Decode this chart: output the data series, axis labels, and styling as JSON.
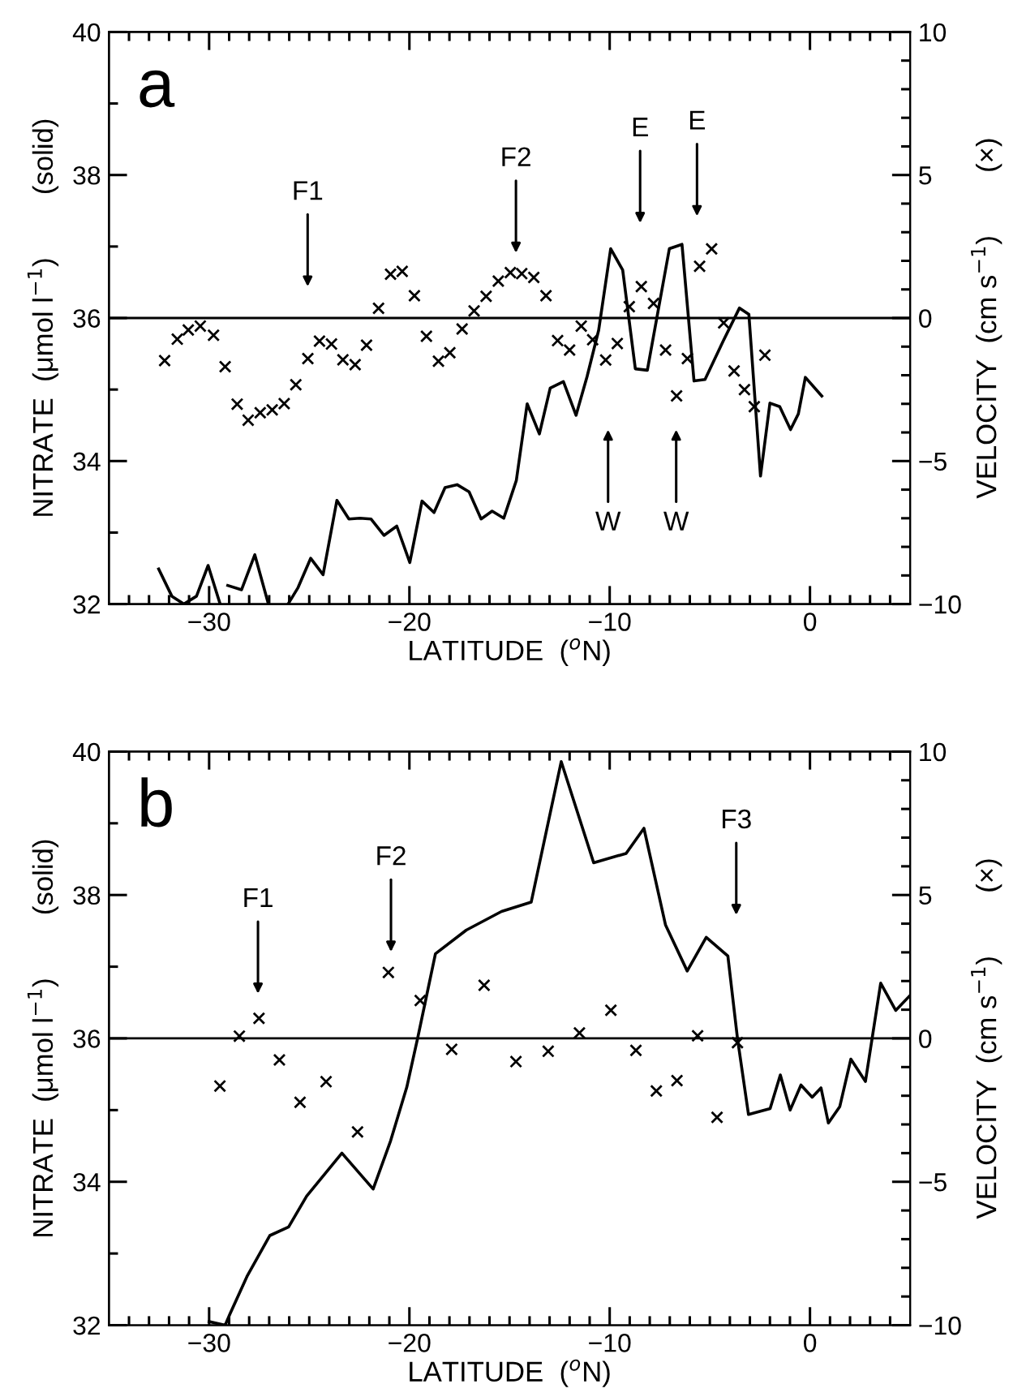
{
  "chart_data": [
    {
      "type": "line",
      "xlabel": "LATITUDE  ($^{o}$N)",
      "ylabel": "NITRATE  (μmol l$^{−1}$)        (solid)",
      "y2label": "VELOCITY  (cm s$^{−1}$)        (×)",
      "xlim": [
        -35,
        5
      ],
      "ylim": [
        32,
        40
      ],
      "y2lim": [
        -10,
        10
      ],
      "xticks": [
        {
          "value": -34,
          "label": null
        },
        {
          "value": -33,
          "label": null
        },
        {
          "value": -32,
          "label": null
        },
        {
          "value": -31,
          "label": null
        },
        {
          "value": -30,
          "label": "−30"
        },
        {
          "value": -29,
          "label": null
        },
        {
          "value": -28,
          "label": null
        },
        {
          "value": -27,
          "label": null
        },
        {
          "value": -26,
          "label": null
        },
        {
          "value": -25,
          "label": null
        },
        {
          "value": -24,
          "label": null
        },
        {
          "value": -23,
          "label": null
        },
        {
          "value": -22,
          "label": null
        },
        {
          "value": -21,
          "label": null
        },
        {
          "value": -20,
          "label": "−20"
        },
        {
          "value": -19,
          "label": null
        },
        {
          "value": -18,
          "label": null
        },
        {
          "value": -17,
          "label": null
        },
        {
          "value": -16,
          "label": null
        },
        {
          "value": -15,
          "label": null
        },
        {
          "value": -14,
          "label": null
        },
        {
          "value": -13,
          "label": null
        },
        {
          "value": -12,
          "label": null
        },
        {
          "value": -11,
          "label": null
        },
        {
          "value": -10,
          "label": "−10"
        },
        {
          "value": -9,
          "label": null
        },
        {
          "value": -8,
          "label": null
        },
        {
          "value": -7,
          "label": null
        },
        {
          "value": -6,
          "label": null
        },
        {
          "value": -5,
          "label": null
        },
        {
          "value": -4,
          "label": null
        },
        {
          "value": -3,
          "label": null
        },
        {
          "value": -2,
          "label": null
        },
        {
          "value": -1,
          "label": null
        },
        0,
        {
          "value": 1,
          "label": null
        },
        {
          "value": 2,
          "label": null
        },
        {
          "value": 3,
          "label": null
        },
        {
          "value": 4,
          "label": null
        }
      ],
      "yticks": [
        32,
        {
          "value": 33,
          "label": null
        },
        34,
        {
          "value": 35,
          "label": null
        },
        36,
        {
          "value": 37,
          "label": null
        },
        38,
        {
          "value": 39,
          "label": null
        },
        40
      ],
      "y2ticks": [
        {
          "value": -10,
          "label": "−10"
        },
        {
          "value": -9,
          "label": null
        },
        {
          "value": -8,
          "label": null
        },
        {
          "value": -7,
          "label": null
        },
        {
          "value": -6,
          "label": null
        },
        {
          "value": -5,
          "label": "−5"
        },
        {
          "value": -4,
          "label": null
        },
        {
          "value": -3,
          "label": null
        },
        {
          "value": -2,
          "label": null
        },
        {
          "value": -1,
          "label": null
        },
        0,
        {
          "value": 1,
          "label": null
        },
        {
          "value": 2,
          "label": null
        },
        {
          "value": 3,
          "label": null
        },
        {
          "value": 4,
          "label": null
        },
        5,
        {
          "value": 6,
          "label": null
        },
        {
          "value": 7,
          "label": null
        },
        {
          "value": 8,
          "label": null
        },
        {
          "value": 9,
          "label": null
        },
        10
      ],
      "ref_lines": [
        {
          "axis": "y",
          "value": 36,
          "color": "#000000",
          "line_style": "solid"
        }
      ],
      "annotations": [
        "a",
        "F1",
        "F2",
        "E",
        "E",
        "W",
        "W"
      ],
      "series": [
        {
          "color": "#000000",
          "marker": "none",
          "line_style": "solid",
          "x": [
            -32.52,
            -31.86,
            -31.26,
            -30.63,
            -30.05,
            -29.45,
            -29.3,
            -29.07,
            -28.38,
            -27.72,
            -27.04,
            -26.5,
            -26.06,
            -25.56,
            -24.93,
            -24.31,
            -23.62,
            -23.02,
            -22.47,
            -21.92,
            -21.27,
            -20.63,
            -19.98,
            -19.37,
            -18.77,
            -18.22,
            -17.62,
            -17.02,
            -16.42,
            -15.87,
            -15.29,
            -14.66,
            -14.12,
            -13.51,
            -12.97,
            -12.31,
            -11.68,
            -11.13,
            -10.55,
            -9.95,
            -9.35,
            -8.72,
            -8.12,
            -7.02,
            -6.39,
            -5.79,
            -5.24,
            -4.33,
            -3.52,
            -3.05,
            -2.47,
            -2.0,
            -1.51,
            -0.97,
            -0.58,
            -0.23,
            0.59
          ],
          "values": [
            32.49,
            32.11,
            32.0,
            32.11,
            32.54,
            32.0,
            null,
            32.26,
            32.2,
            32.69,
            32.0,
            null,
            32.0,
            32.23,
            32.64,
            32.41,
            33.45,
            33.19,
            33.2,
            33.19,
            32.96,
            33.09,
            32.58,
            33.44,
            33.28,
            33.63,
            33.67,
            33.57,
            33.19,
            33.3,
            33.2,
            33.73,
            34.8,
            34.38,
            35.02,
            35.11,
            34.64,
            35.18,
            35.83,
            36.97,
            36.67,
            35.29,
            35.27,
            36.97,
            37.03,
            35.12,
            35.14,
            35.68,
            36.14,
            36.05,
            33.79,
            34.81,
            34.76,
            34.44,
            34.66,
            35.17,
            34.91
          ]
        },
        {
          "type": "scatter",
          "axis": "y2",
          "color": "#000000",
          "marker": "cross",
          "x": [
            -32.22,
            -31.59,
            -31.04,
            -30.44,
            -29.78,
            -29.2,
            -28.6,
            -28.05,
            -27.45,
            -26.85,
            -26.25,
            -25.67,
            -25.07,
            -24.49,
            -23.89,
            -23.32,
            -22.71,
            -22.14,
            -21.54,
            -20.94,
            -20.36,
            -19.75,
            -19.15,
            -18.55,
            -17.98,
            -17.37,
            -16.77,
            -16.17,
            -15.56,
            -14.96,
            -14.39,
            -13.79,
            -13.18,
            -12.6,
            -12.0,
            -11.42,
            -10.85,
            -10.2,
            -9.62,
            -9.02,
            -8.42,
            -7.81,
            -7.21,
            -6.66,
            -6.12,
            -5.51,
            -4.91,
            -4.31,
            -3.79,
            -3.27,
            -2.78,
            -2.25
          ],
          "values": [
            -1.49,
            -0.74,
            -0.42,
            -0.28,
            -0.6,
            -1.7,
            -3.01,
            -3.57,
            -3.31,
            -3.21,
            -2.99,
            -2.33,
            -1.42,
            -0.81,
            -0.91,
            -1.46,
            -1.63,
            -0.95,
            0.34,
            1.53,
            1.63,
            0.78,
            -0.64,
            -1.51,
            -1.21,
            -0.38,
            0.25,
            0.76,
            1.29,
            1.59,
            1.55,
            1.42,
            0.78,
            -0.79,
            -1.12,
            -0.28,
            -0.76,
            -1.47,
            -0.89,
            0.4,
            1.1,
            0.51,
            -1.12,
            -2.72,
            -1.42,
            1.81,
            2.42,
            -0.17,
            -1.85,
            -2.5,
            -3.1,
            -1.3
          ]
        }
      ]
    },
    {
      "type": "line",
      "xlabel": "LATITUDE  ($^{o}$N)",
      "ylabel": "NITRATE  (μmol l$^{−1}$)        (solid)",
      "y2label": "VELOCITY  (cm s$^{−1}$)        (×)",
      "xlim": [
        -35,
        5
      ],
      "ylim": [
        32,
        40
      ],
      "y2lim": [
        -10,
        10
      ],
      "xticks": [
        {
          "value": -34,
          "label": null
        },
        {
          "value": -33,
          "label": null
        },
        {
          "value": -32,
          "label": null
        },
        {
          "value": -31,
          "label": null
        },
        {
          "value": -30,
          "label": "−30"
        },
        {
          "value": -29,
          "label": null
        },
        {
          "value": -28,
          "label": null
        },
        {
          "value": -27,
          "label": null
        },
        {
          "value": -26,
          "label": null
        },
        {
          "value": -25,
          "label": null
        },
        {
          "value": -24,
          "label": null
        },
        {
          "value": -23,
          "label": null
        },
        {
          "value": -22,
          "label": null
        },
        {
          "value": -21,
          "label": null
        },
        {
          "value": -20,
          "label": "−20"
        },
        {
          "value": -19,
          "label": null
        },
        {
          "value": -18,
          "label": null
        },
        {
          "value": -17,
          "label": null
        },
        {
          "value": -16,
          "label": null
        },
        {
          "value": -15,
          "label": null
        },
        {
          "value": -14,
          "label": null
        },
        {
          "value": -13,
          "label": null
        },
        {
          "value": -12,
          "label": null
        },
        {
          "value": -11,
          "label": null
        },
        {
          "value": -10,
          "label": "−10"
        },
        {
          "value": -9,
          "label": null
        },
        {
          "value": -8,
          "label": null
        },
        {
          "value": -7,
          "label": null
        },
        {
          "value": -6,
          "label": null
        },
        {
          "value": -5,
          "label": null
        },
        {
          "value": -4,
          "label": null
        },
        {
          "value": -3,
          "label": null
        },
        {
          "value": -2,
          "label": null
        },
        {
          "value": -1,
          "label": null
        },
        0,
        {
          "value": 1,
          "label": null
        },
        {
          "value": 2,
          "label": null
        },
        {
          "value": 3,
          "label": null
        },
        {
          "value": 4,
          "label": null
        }
      ],
      "yticks": [
        32,
        {
          "value": 33,
          "label": null
        },
        34,
        {
          "value": 35,
          "label": null
        },
        36,
        {
          "value": 37,
          "label": null
        },
        38,
        {
          "value": 39,
          "label": null
        },
        40
      ],
      "y2ticks": [
        {
          "value": -10,
          "label": "−10"
        },
        {
          "value": -9,
          "label": null
        },
        {
          "value": -8,
          "label": null
        },
        {
          "value": -7,
          "label": null
        },
        {
          "value": -6,
          "label": null
        },
        {
          "value": -5,
          "label": "−5"
        },
        {
          "value": -4,
          "label": null
        },
        {
          "value": -3,
          "label": null
        },
        {
          "value": -2,
          "label": null
        },
        {
          "value": -1,
          "label": null
        },
        0,
        {
          "value": 1,
          "label": null
        },
        {
          "value": 2,
          "label": null
        },
        {
          "value": 3,
          "label": null
        },
        {
          "value": 4,
          "label": null
        },
        5,
        {
          "value": 6,
          "label": null
        },
        {
          "value": 7,
          "label": null
        },
        {
          "value": 8,
          "label": null
        },
        {
          "value": 9,
          "label": null
        },
        10
      ],
      "ref_lines": [
        {
          "axis": "y",
          "value": 36,
          "color": "#000000",
          "line_style": "solid"
        }
      ],
      "annotations": [
        "b",
        "F1",
        "F2",
        "F3"
      ],
      "series": [
        {
          "color": "#000000",
          "marker": "none",
          "line_style": "solid",
          "x": [
            -30.0,
            -29.2,
            -28.97,
            -28.11,
            -26.97,
            -26.03,
            -25.13,
            -23.37,
            -21.81,
            -20.94,
            -20.13,
            -19.59,
            -18.7,
            -17.16,
            -15.4,
            -13.92,
            -12.42,
            -10.8,
            -9.18,
            -8.29,
            -7.21,
            -6.13,
            -5.18,
            -4.1,
            -3.62,
            -3.07,
            -1.99,
            -1.48,
            -0.99,
            -0.45,
            0.11,
            0.55,
            0.92,
            1.49,
            2.04,
            2.77,
            3.53,
            4.28,
            5.0
          ],
          "values": [
            32.05,
            32.0,
            32.15,
            32.68,
            33.25,
            33.37,
            33.8,
            34.4,
            33.9,
            34.57,
            35.32,
            36.0,
            37.18,
            37.51,
            37.77,
            37.9,
            39.86,
            38.45,
            38.58,
            38.93,
            37.58,
            36.94,
            37.41,
            37.15,
            36.0,
            34.94,
            35.02,
            35.49,
            35.0,
            35.35,
            35.18,
            35.31,
            34.82,
            35.05,
            35.71,
            35.4,
            36.77,
            36.39,
            36.6
          ]
        },
        {
          "type": "scatter",
          "axis": "y2",
          "color": "#000000",
          "marker": "cross",
          "x": [
            -29.46,
            -28.49,
            -27.51,
            -26.49,
            -25.46,
            -24.16,
            -22.59,
            -21.05,
            -19.46,
            -17.89,
            -16.27,
            -14.68,
            -13.07,
            -11.51,
            -9.94,
            -8.69,
            -7.67,
            -6.64,
            -5.61,
            -4.64,
            -3.62
          ],
          "values": [
            -1.66,
            0.08,
            0.7,
            -0.75,
            -2.23,
            -1.51,
            -3.26,
            2.3,
            1.32,
            -0.38,
            1.85,
            -0.81,
            -0.45,
            0.19,
            0.98,
            -0.42,
            -1.83,
            -1.47,
            0.09,
            -2.75,
            -0.15
          ]
        }
      ]
    }
  ]
}
